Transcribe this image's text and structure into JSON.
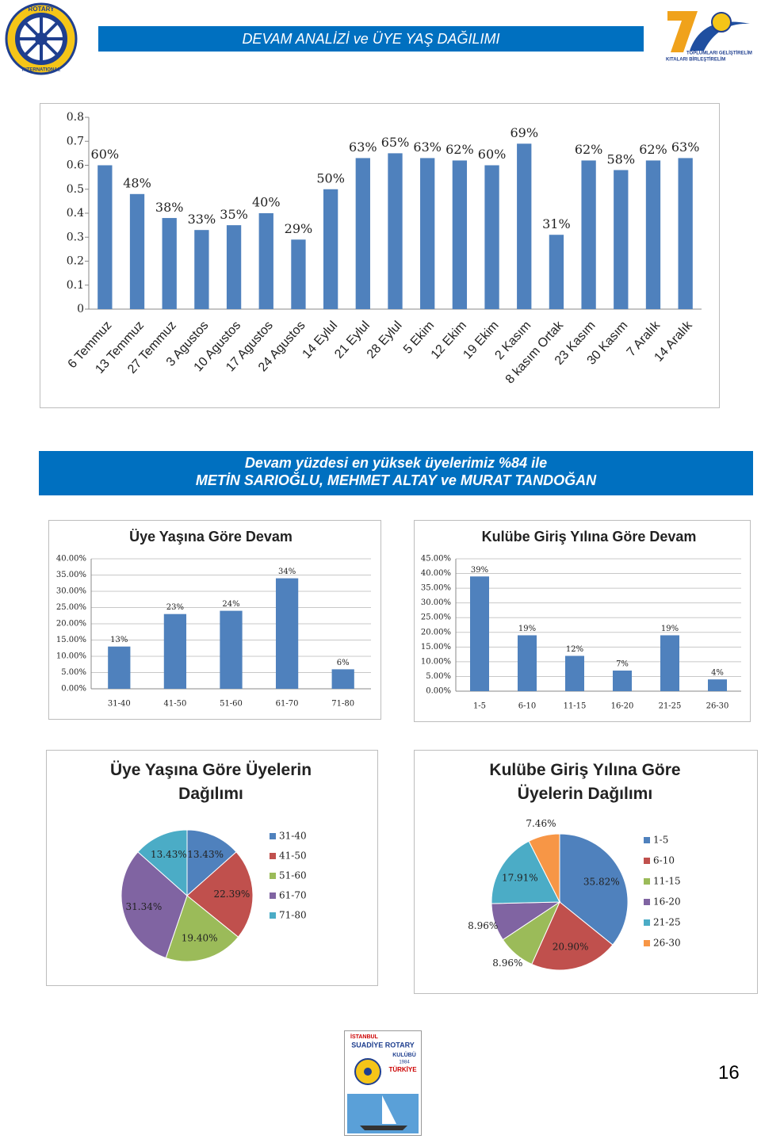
{
  "header": {
    "title": "DEVAM ANALİZİ ve ÜYE YAŞ DAĞILIMI"
  },
  "logos": {
    "rotary": [
      "ROTARY",
      "INTERNATIONAL"
    ],
    "anniversary": [
      "TOPLUMLARI GELİŞTİRELİM",
      "KITALARI BİRLEŞTİRELİM"
    ],
    "club": [
      "İSTANBUL",
      "SUADİYE ROTARY",
      "KULÜBÜ",
      "1984",
      "TÜRKİYE"
    ]
  },
  "banner": {
    "lines": [
      "Devam yüzdesi en yüksek üyelerimiz %84 ile",
      "METİN SARIOĞLU, MEHMET ALTAY ve MURAT TANDOĞAN"
    ]
  },
  "page_number": "16",
  "chart_data": [
    {
      "type": "bar",
      "color": "#4f81bd",
      "grid": false,
      "categories": [
        "6 Temmuz",
        "13 Temmuz",
        "27 Temmuz",
        "3 Agustos",
        "10 Agustos",
        "17 Agustos",
        "24 Agustos",
        "14 Eylul",
        "21 Eylul",
        "28 Eylul",
        "5 Ekim",
        "12 Ekim",
        "19 Ekim",
        "2 Kasım",
        "8 kasım Ortak",
        "23 Kasım",
        "30 Kasım",
        "7 Aralık",
        "14 Aralık"
      ],
      "values": [
        0.6,
        0.48,
        0.38,
        0.33,
        0.35,
        0.4,
        0.29,
        0.5,
        0.63,
        0.65,
        0.63,
        0.62,
        0.6,
        0.69,
        0.31,
        0.62,
        0.58,
        0.62,
        0.63
      ],
      "value_labels": [
        "60%",
        "48%",
        "38%",
        "33%",
        "35%",
        "40%",
        "29%",
        "50%",
        "63%",
        "65%",
        "63%",
        "62%",
        "60%",
        "69%",
        "31%",
        "62%",
        "58%",
        "62%",
        "63%"
      ],
      "ylim": [
        0,
        0.8
      ],
      "yticks": [
        0,
        0.1,
        0.2,
        0.3,
        0.4,
        0.5,
        0.6,
        0.7,
        0.8
      ]
    },
    {
      "type": "bar",
      "title": "Üye Yaşına Göre Devam",
      "color": "#4f81bd",
      "grid": true,
      "categories": [
        "31-40",
        "41-50",
        "51-60",
        "61-70",
        "71-80"
      ],
      "values": [
        13,
        23,
        24,
        34,
        6
      ],
      "value_labels": [
        "13%",
        "23%",
        "24%",
        "34%",
        "6%"
      ],
      "ylim": [
        0,
        40
      ],
      "yticks": [
        {
          "value": 0,
          "label": "0.00%"
        },
        {
          "value": 5,
          "label": "5.00%"
        },
        {
          "value": 10,
          "label": "10.00%"
        },
        {
          "value": 15,
          "label": "15.00%"
        },
        {
          "value": 20,
          "label": "20.00%"
        },
        {
          "value": 25,
          "label": "25.00%"
        },
        {
          "value": 30,
          "label": "30.00%"
        },
        {
          "value": 35,
          "label": "35.00%"
        },
        {
          "value": 40,
          "label": "40.00%"
        }
      ]
    },
    {
      "type": "bar",
      "title": "Kulübe Giriş Yılına Göre Devam",
      "color": "#4f81bd",
      "grid": true,
      "categories": [
        "1-5",
        "6-10",
        "11-15",
        "16-20",
        "21-25",
        "26-30"
      ],
      "values": [
        39,
        19,
        12,
        7,
        19,
        4
      ],
      "value_labels": [
        "39%",
        "19%",
        "12%",
        "7%",
        "19%",
        "4%"
      ],
      "ylim": [
        0,
        45
      ],
      "yticks": [
        {
          "value": 0,
          "label": "0.00%"
        },
        {
          "value": 5,
          "label": "5.00%"
        },
        {
          "value": 10,
          "label": "10.00%"
        },
        {
          "value": 15,
          "label": "15.00%"
        },
        {
          "value": 20,
          "label": "20.00%"
        },
        {
          "value": 25,
          "label": "25.00%"
        },
        {
          "value": 30,
          "label": "30.00%"
        },
        {
          "value": 35,
          "label": "35.00%"
        },
        {
          "value": 40,
          "label": "40.00%"
        },
        {
          "value": 45,
          "label": "45.00%"
        }
      ]
    },
    {
      "type": "pie",
      "title": "Üye Yaşına Göre Üyelerin Dağılımı",
      "categories": [
        "31-40",
        "41-50",
        "51-60",
        "61-70",
        "71-80"
      ],
      "values": [
        13.43,
        22.39,
        19.4,
        31.34,
        13.43
      ],
      "value_labels": [
        "13.43%",
        "22.39%",
        "19.40%",
        "31.34%",
        "13.43%"
      ],
      "colors": [
        "#4f81bd",
        "#c0504d",
        "#9bbb59",
        "#8064a2",
        "#4bacc6"
      ]
    },
    {
      "type": "pie",
      "title": "Kulübe Giriş Yılına Göre Üyelerin Dağılımı",
      "categories": [
        "1-5",
        "6-10",
        "11-15",
        "16-20",
        "21-25",
        "26-30"
      ],
      "values": [
        35.82,
        20.9,
        8.96,
        8.96,
        17.91,
        7.46
      ],
      "value_labels": [
        "35.82%",
        "20.90%",
        "8.96%",
        "8.96%",
        "17.91%",
        "7.46%"
      ],
      "colors": [
        "#4f81bd",
        "#c0504d",
        "#9bbb59",
        "#8064a2",
        "#4bacc6",
        "#f79646"
      ]
    }
  ]
}
